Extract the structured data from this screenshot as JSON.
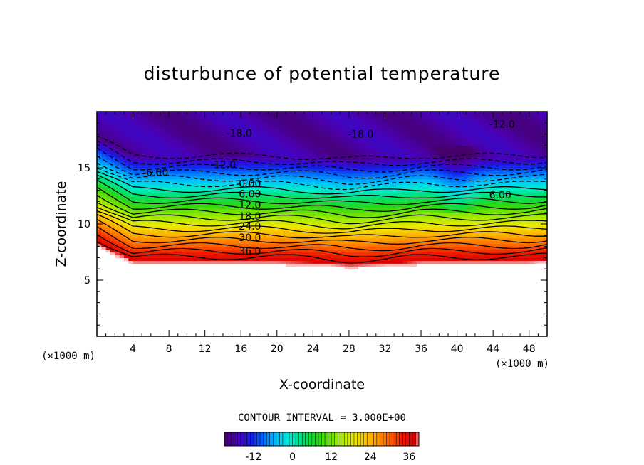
{
  "chart_data": {
    "type": "heatmap",
    "title": "disturbunce of potential temperature",
    "xlabel": "X-coordinate",
    "ylabel": "Z-coordinate",
    "x_unit": "(×1000 m)",
    "y_unit": "(×1000 m)",
    "xlim": [
      0,
      50
    ],
    "ylim": [
      0,
      20
    ],
    "x_ticks": [
      "4",
      "8",
      "12",
      "16",
      "20",
      "24",
      "28",
      "32",
      "36",
      "40",
      "44",
      "48"
    ],
    "y_ticks": [
      "5",
      "10",
      "15"
    ],
    "contour_interval_text": "CONTOUR INTERVAL = 3.000E+00",
    "contour_interval": 3.0,
    "colorbar": {
      "min": -21,
      "max": 39,
      "ticks": [
        "-12",
        "0",
        "12",
        "24",
        "36"
      ]
    },
    "contour_labels": [
      {
        "text": "-18.0",
        "x": 15.8,
        "z": 18.1
      },
      {
        "text": "-18.0",
        "x": 29.3,
        "z": 18.0
      },
      {
        "text": "-12.0",
        "x": 45.0,
        "z": 18.9
      },
      {
        "text": "-12.0",
        "x": 14.0,
        "z": 15.3
      },
      {
        "text": "-6.00",
        "x": 6.5,
        "z": 14.6
      },
      {
        "text": "6.00",
        "x": 44.8,
        "z": 12.6
      },
      {
        "text": "0.00",
        "x": 17.0,
        "z": 13.6
      },
      {
        "text": "6.00",
        "x": 17.0,
        "z": 12.7
      },
      {
        "text": "12.0",
        "x": 17.0,
        "z": 11.7
      },
      {
        "text": "18.0",
        "x": 17.0,
        "z": 10.7
      },
      {
        "text": "24.0",
        "x": 17.0,
        "z": 9.8
      },
      {
        "text": "30.0",
        "x": 17.0,
        "z": 8.8
      },
      {
        "text": "36.0",
        "x": 17.0,
        "z": 7.6
      }
    ],
    "profile": {
      "x": [
        0,
        4,
        8,
        12,
        16,
        20,
        24,
        28,
        32,
        36,
        40,
        44,
        48,
        50
      ],
      "theta_surface": [
        8,
        6.4,
        6.4,
        6.4,
        6.4,
        6.4,
        6.3,
        6.1,
        6.2,
        6.4,
        6.4,
        6.4,
        6.4,
        6.5
      ],
      "value_at_surface": 40,
      "value_at_top": -18
    }
  }
}
